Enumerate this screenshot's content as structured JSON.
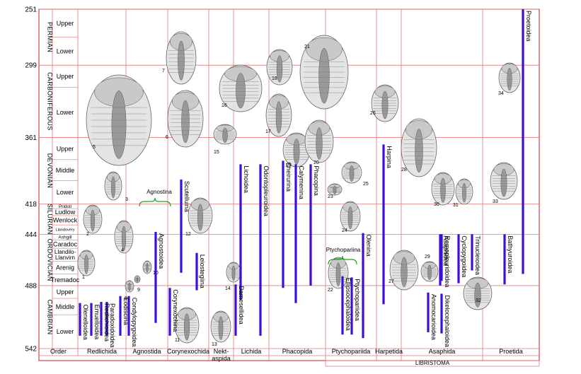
{
  "chart_data": {
    "type": "range-bar",
    "xlabel": "",
    "ylabel": "",
    "y_axis": {
      "ticks": [
        251,
        299,
        361,
        418,
        444,
        488,
        542
      ],
      "ylim": [
        542,
        251
      ]
    },
    "periods": [
      {
        "name": "PERMIAN",
        "start": 299,
        "end": 251,
        "epochs": [
          {
            "name": "Upper",
            "start": 275,
            "end": 251
          },
          {
            "name": "Lower",
            "start": 299,
            "end": 275
          }
        ]
      },
      {
        "name": "CARBONIFEROUS",
        "start": 361,
        "end": 299,
        "epochs": [
          {
            "name": "Upper",
            "start": 318,
            "end": 299
          },
          {
            "name": "Lower",
            "start": 361,
            "end": 318
          }
        ]
      },
      {
        "name": "DEVONIAN",
        "start": 418,
        "end": 361,
        "epochs": [
          {
            "name": "Upper",
            "start": 380,
            "end": 361
          },
          {
            "name": "Middle",
            "start": 398,
            "end": 380
          },
          {
            "name": "Lower",
            "start": 418,
            "end": 398
          }
        ]
      },
      {
        "name": "SILURIAN",
        "start": 444,
        "end": 418,
        "epochs": [
          {
            "name": "Pridoli",
            "start": 422,
            "end": 418
          },
          {
            "name": "Ludlow",
            "start": 428,
            "end": 422
          },
          {
            "name": "Wenlock",
            "start": 436,
            "end": 428
          },
          {
            "name": "Llandovery",
            "start": 444,
            "end": 436
          }
        ]
      },
      {
        "name": "ORDOVICIAN",
        "start": 488,
        "end": 444,
        "epochs": [
          {
            "name": "Ashgill",
            "start": 449,
            "end": 444
          },
          {
            "name": "Caradoc",
            "start": 456,
            "end": 449
          },
          {
            "name": "Llandilo-Llanvirn",
            "start": 467,
            "end": 456
          },
          {
            "name": "Arenig",
            "start": 478,
            "end": 467
          },
          {
            "name": "Tremadoc",
            "start": 488,
            "end": 478
          }
        ]
      },
      {
        "name": "CAMBRIAN",
        "start": 542,
        "end": 488,
        "epochs": [
          {
            "name": "Upper",
            "start": 499,
            "end": 488
          },
          {
            "name": "Middle",
            "start": 513,
            "end": 499
          },
          {
            "name": "Lower",
            "start": 542,
            "end": 513
          }
        ]
      }
    ],
    "orders": [
      {
        "name": "Order"
      },
      {
        "name": "Redlichida"
      },
      {
        "name": "Agnostida"
      },
      {
        "name": "Corynexochida"
      },
      {
        "name": "Nekt-\naspida"
      },
      {
        "name": "Lichida"
      },
      {
        "name": "Phacopida"
      },
      {
        "name": "Ptychopariida"
      },
      {
        "name": "Harpetida"
      },
      {
        "name": "Asaphida"
      },
      {
        "name": "Proetida"
      }
    ],
    "group_labels": [
      "Agnostina",
      "Ptychopariina"
    ],
    "footer_label": "LIBRISTOMA",
    "series": [
      {
        "name": "Olenelloidea",
        "start": 531,
        "end": 503
      },
      {
        "name": "Emuelloidea",
        "start": 531,
        "end": 503
      },
      {
        "name": "Redlichioidea",
        "start": 531,
        "end": 502
      },
      {
        "name": "Paradoxidoidea",
        "start": 531,
        "end": 502
      },
      {
        "name": "Eodiscina",
        "start": 531,
        "end": 497
      },
      {
        "name": "Condylopygoidea",
        "start": 531,
        "end": 497
      },
      {
        "name": "Agnostoidea",
        "start": 520,
        "end": 442
      },
      {
        "name": "Scutelluina",
        "start": 477,
        "end": 397
      },
      {
        "name": "Corynexochina",
        "start": 531,
        "end": 490
      },
      {
        "name": "Leiostegiina",
        "start": 492,
        "end": 460
      },
      {
        "name": "Damesellidea",
        "start": 531,
        "end": 487
      },
      {
        "name": "Odontopleuroidea",
        "start": 531,
        "end": 384
      },
      {
        "name": "Lichoidea",
        "start": 500,
        "end": 384
      },
      {
        "name": "Cheirurina",
        "start": 490,
        "end": 381
      },
      {
        "name": "Calymenina",
        "start": 503,
        "end": 384
      },
      {
        "name": "Phacopina",
        "start": 488,
        "end": 384
      },
      {
        "name": "Ellipsocephaloidea",
        "start": 530,
        "end": 480
      },
      {
        "name": "Ptychopariidea",
        "start": 530,
        "end": 481
      },
      {
        "name": "Olenina",
        "start": 533,
        "end": 443
      },
      {
        "name": "Harpina",
        "start": 504,
        "end": 367
      },
      {
        "name": "Asaphidea",
        "start": 488,
        "end": 444
      },
      {
        "name": "Anomocarioidea",
        "start": 528,
        "end": 494
      },
      {
        "name": "Dikelocephaloidea",
        "start": 529,
        "end": 495
      },
      {
        "name": "Remopleuridoidea",
        "start": 484,
        "end": 444
      },
      {
        "name": "Cyclopygoidea",
        "start": 486,
        "end": 444
      },
      {
        "name": "Trinucleioidea",
        "start": 475,
        "end": 444
      },
      {
        "name": "Bathyuroidea",
        "start": 487,
        "end": 444
      },
      {
        "name": "Proetoidea",
        "start": 478,
        "end": 251
      }
    ],
    "illustration_numbers": [
      "1",
      "2",
      "3",
      "4",
      "5",
      "6",
      "7",
      "8",
      "9",
      "10",
      "11",
      "12",
      "13",
      "14",
      "15",
      "16",
      "17",
      "18",
      "19",
      "20",
      "21",
      "22",
      "23",
      "24",
      "25",
      "26",
      "27",
      "28",
      "29",
      "30",
      "31",
      "32",
      "33",
      "34"
    ],
    "grid": true,
    "colors": {
      "bar": "#3c0fd8",
      "grid": "#e07a7a",
      "frame": "#c02020",
      "bracket": "#1aa31a"
    }
  }
}
